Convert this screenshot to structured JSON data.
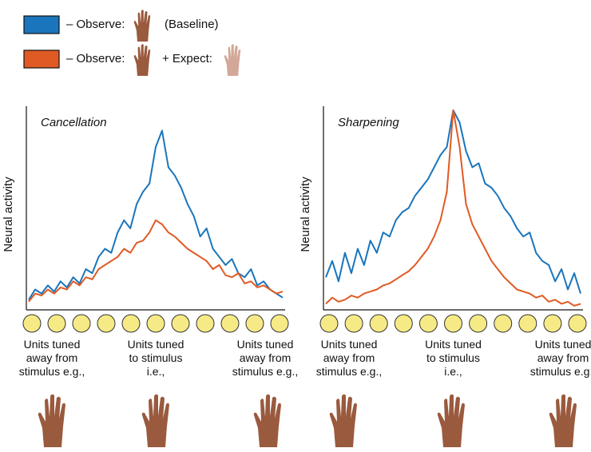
{
  "legend": [
    {
      "color": "#1a75bc",
      "texts": [
        "– Observe:",
        "(Baseline)"
      ]
    },
    {
      "color": "#e05a24",
      "texts": [
        "– Observe:",
        "+ Expect:"
      ]
    }
  ],
  "chart_data": [
    {
      "type": "line",
      "title": "Cancellation",
      "ylabel": "Neural activity",
      "ylim": [
        0,
        100
      ],
      "x_labels": [
        "Units tuned away from stimulus e.g.,",
        "Units tuned to stimulus i.e.,",
        "Units tuned away from stimulus e.g.,"
      ],
      "series": [
        {
          "color": "#1a75bc",
          "values": [
            5,
            10,
            8,
            12,
            9,
            14,
            11,
            16,
            13,
            20,
            18,
            26,
            30,
            28,
            38,
            44,
            40,
            52,
            58,
            62,
            80,
            88,
            70,
            66,
            60,
            52,
            46,
            36,
            40,
            30,
            26,
            22,
            25,
            18,
            16,
            20,
            12,
            14,
            10,
            8,
            6
          ]
        },
        {
          "color": "#e05a24",
          "values": [
            4,
            8,
            7,
            10,
            8,
            11,
            10,
            14,
            12,
            16,
            15,
            20,
            22,
            24,
            26,
            30,
            28,
            33,
            34,
            38,
            44,
            42,
            38,
            36,
            33,
            30,
            28,
            26,
            24,
            20,
            22,
            17,
            16,
            18,
            13,
            14,
            11,
            12,
            10,
            8,
            9
          ]
        }
      ]
    },
    {
      "type": "line",
      "title": "Sharpening",
      "ylabel": "Neural activity",
      "ylim": [
        0,
        100
      ],
      "x_labels": [
        "Units tuned away from stimulus e.g.,",
        "Units tuned to stimulus i.e.,",
        "Units tuned away from stimulus e.g.,"
      ],
      "series": [
        {
          "color": "#1a75bc",
          "values": [
            16,
            24,
            14,
            28,
            18,
            30,
            22,
            34,
            28,
            38,
            36,
            44,
            48,
            50,
            56,
            60,
            64,
            70,
            76,
            80,
            98,
            92,
            78,
            70,
            72,
            62,
            60,
            56,
            50,
            46,
            40,
            36,
            38,
            28,
            24,
            22,
            14,
            20,
            10,
            18,
            8
          ]
        },
        {
          "color": "#e05a24",
          "values": [
            3,
            6,
            4,
            5,
            7,
            6,
            8,
            9,
            10,
            12,
            13,
            15,
            17,
            19,
            22,
            26,
            30,
            36,
            44,
            58,
            98,
            80,
            52,
            42,
            36,
            30,
            24,
            20,
            16,
            13,
            10,
            9,
            8,
            6,
            7,
            4,
            5,
            3,
            4,
            2,
            3
          ]
        }
      ]
    }
  ]
}
